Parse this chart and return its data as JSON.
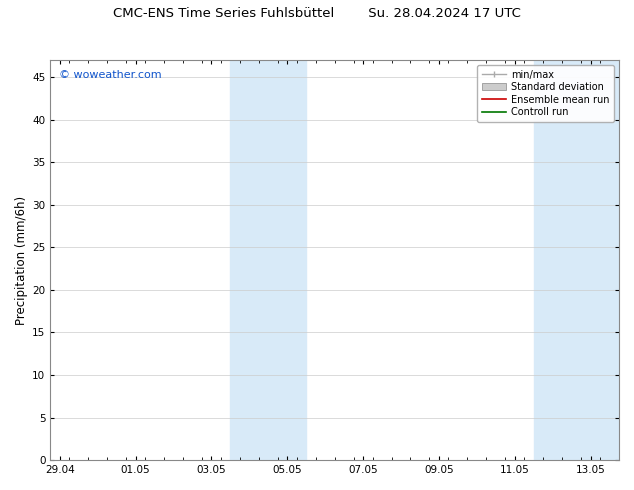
{
  "title": "CMC-ENS Time Series Fuhlsbüttel        Su. 28.04.2024 17 UTC",
  "ylabel": "Precipitation (mm/6h)",
  "watermark": "© woweather.com",
  "watermark_color": "#1155cc",
  "ylim": [
    0,
    47
  ],
  "yticks": [
    0,
    5,
    10,
    15,
    20,
    25,
    30,
    35,
    40,
    45
  ],
  "xlim": [
    -0.25,
    14.75
  ],
  "xtick_labels": [
    "29.04",
    "01.05",
    "03.05",
    "05.05",
    "07.05",
    "09.05",
    "11.05",
    "13.05"
  ],
  "xtick_positions": [
    0,
    2,
    4,
    6,
    8,
    10,
    12,
    14
  ],
  "shade_bands": [
    {
      "start": 4.5,
      "end": 6.5
    },
    {
      "start": 12.5,
      "end": 14.75
    }
  ],
  "shade_color": "#d8eaf8",
  "shade_alpha": 1.0,
  "bg_color": "#ffffff",
  "legend_entries": [
    {
      "label": "min/max",
      "type": "errorbar",
      "color": "#aaaaaa"
    },
    {
      "label": "Standard deviation",
      "type": "patch",
      "color": "#cccccc"
    },
    {
      "label": "Ensemble mean run",
      "type": "line",
      "color": "#cc0000"
    },
    {
      "label": "Controll run",
      "type": "line",
      "color": "#007700"
    }
  ],
  "font_size_title": 9.5,
  "font_size_tick": 7.5,
  "font_size_legend": 7,
  "font_size_ylabel": 8.5,
  "font_size_watermark": 8
}
